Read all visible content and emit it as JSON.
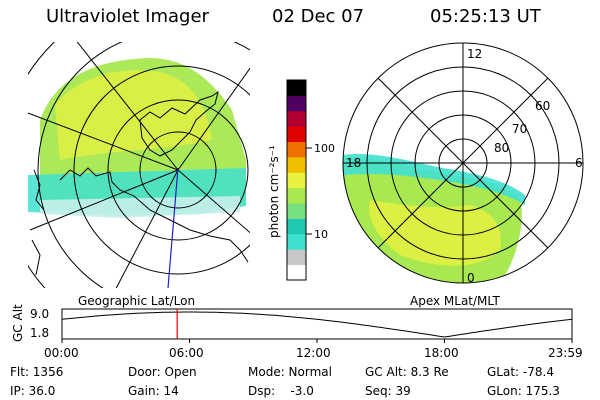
{
  "header": {
    "instrument": "Ultraviolet Imager",
    "date": "02 Dec 07",
    "time": "05:25:13 UT"
  },
  "geo_map": {
    "caption": "Geographic Lat/Lon"
  },
  "apex_map": {
    "caption": "Apex MLat/MLT",
    "mlt_labels": [
      "12",
      "18",
      "6",
      "0"
    ],
    "mlat_labels": [
      "60",
      "70",
      "80"
    ]
  },
  "colorbar": {
    "unit_label": "photon cm⁻²s⁻¹",
    "tick_labels": [
      "100",
      "10"
    ],
    "colors": [
      "#ffffff",
      "#c8c8c8",
      "#40e0d0",
      "#20c8b0",
      "#78e080",
      "#a8e850",
      "#e8f040",
      "#f0c000",
      "#f07000",
      "#e00000",
      "#b00030",
      "#500060",
      "#000000"
    ]
  },
  "altitude_plot": {
    "ylabel": "GC Alt",
    "y_ticks": [
      "9.0",
      "1.8"
    ],
    "x_ticks": [
      "00:00",
      "06:00",
      "12:00",
      "18:00",
      "23:59"
    ],
    "marker_time_hours": 5.42
  },
  "status": {
    "flt": "Flt: 1356",
    "ip": "IP: 36.0",
    "door": "Door: Open",
    "gain": "Gain: 14",
    "mode": "Mode: Normal",
    "dsp": "Dsp:    -3.0",
    "gc_alt": "GC Alt: 8.3 Re",
    "seq": "Seq: 39",
    "glat": "GLat: -78.4",
    "glon": "GLon: 175.3"
  }
}
